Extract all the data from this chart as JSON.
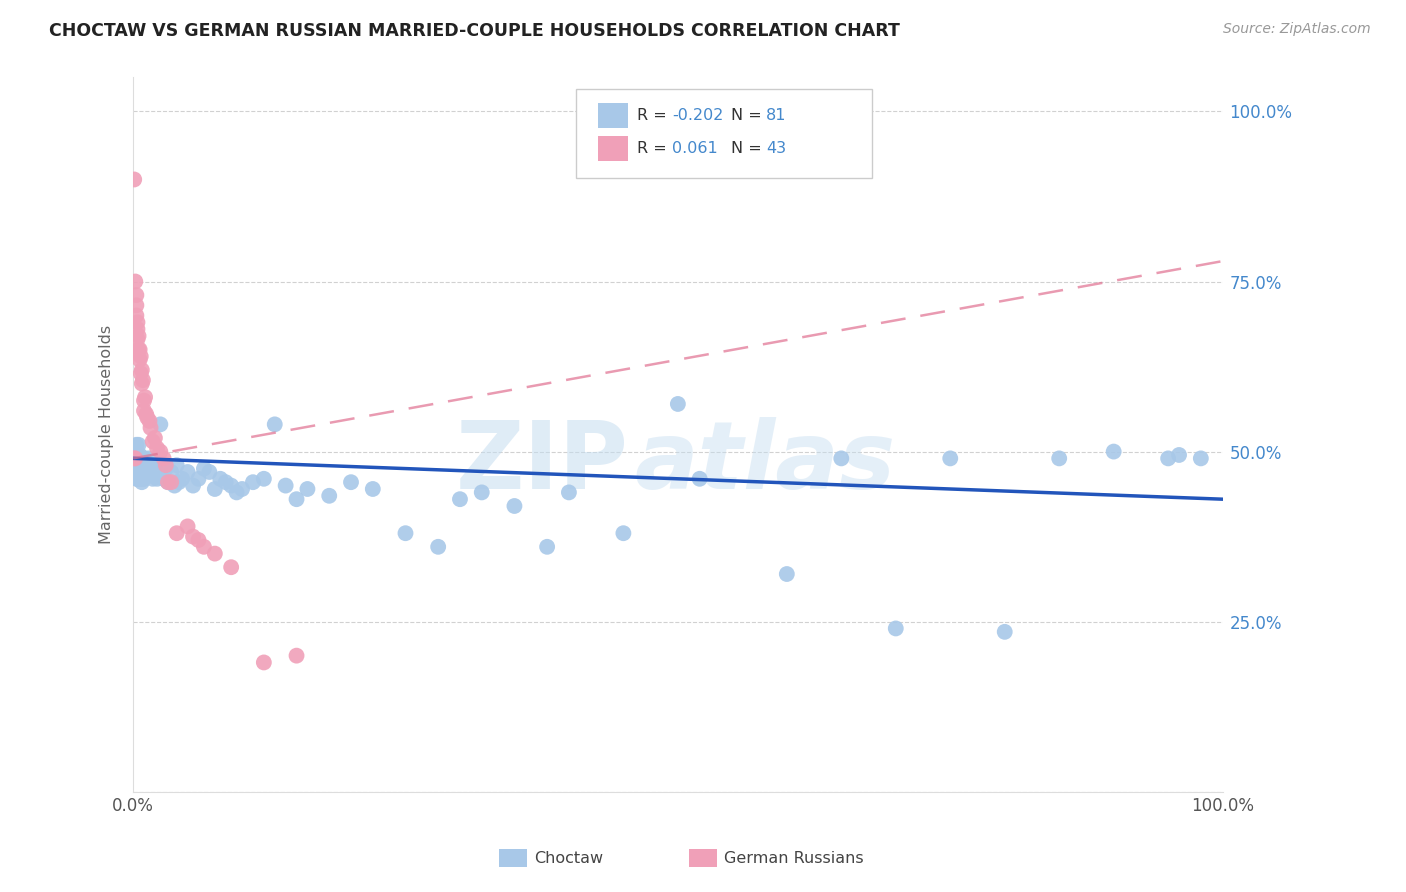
{
  "title": "CHOCTAW VS GERMAN RUSSIAN MARRIED-COUPLE HOUSEHOLDS CORRELATION CHART",
  "source": "Source: ZipAtlas.com",
  "ylabel": "Married-couple Households",
  "watermark_zip": "ZIP",
  "watermark_atlas": "atlas",
  "blue_scatter_color": "#a8c8e8",
  "pink_scatter_color": "#f0a0b8",
  "line_blue_color": "#2255bb",
  "line_pink_color": "#e07090",
  "background": "#ffffff",
  "grid_color": "#cccccc",
  "title_color": "#222222",
  "source_color": "#999999",
  "right_axis_color": "#4488cc",
  "legend_r_color": "#4488cc",
  "legend_black": "#333333",
  "choctaw_x": [
    0.001,
    0.002,
    0.002,
    0.003,
    0.003,
    0.003,
    0.004,
    0.004,
    0.004,
    0.005,
    0.005,
    0.005,
    0.006,
    0.006,
    0.007,
    0.007,
    0.008,
    0.008,
    0.009,
    0.009,
    0.01,
    0.01,
    0.011,
    0.012,
    0.013,
    0.014,
    0.015,
    0.016,
    0.017,
    0.018,
    0.02,
    0.022,
    0.025,
    0.028,
    0.03,
    0.032,
    0.035,
    0.038,
    0.04,
    0.042,
    0.045,
    0.05,
    0.055,
    0.06,
    0.065,
    0.07,
    0.075,
    0.08,
    0.085,
    0.09,
    0.095,
    0.1,
    0.11,
    0.12,
    0.13,
    0.14,
    0.15,
    0.16,
    0.18,
    0.2,
    0.22,
    0.25,
    0.28,
    0.3,
    0.32,
    0.35,
    0.38,
    0.4,
    0.45,
    0.5,
    0.52,
    0.6,
    0.65,
    0.7,
    0.75,
    0.8,
    0.85,
    0.9,
    0.95,
    0.96,
    0.98
  ],
  "choctaw_y": [
    0.49,
    0.48,
    0.475,
    0.51,
    0.495,
    0.46,
    0.49,
    0.475,
    0.46,
    0.51,
    0.48,
    0.46,
    0.495,
    0.46,
    0.49,
    0.465,
    0.48,
    0.455,
    0.475,
    0.46,
    0.49,
    0.46,
    0.475,
    0.48,
    0.465,
    0.49,
    0.475,
    0.465,
    0.48,
    0.46,
    0.475,
    0.46,
    0.54,
    0.46,
    0.475,
    0.455,
    0.47,
    0.45,
    0.48,
    0.455,
    0.46,
    0.47,
    0.45,
    0.46,
    0.475,
    0.47,
    0.445,
    0.46,
    0.455,
    0.45,
    0.44,
    0.445,
    0.455,
    0.46,
    0.54,
    0.45,
    0.43,
    0.445,
    0.435,
    0.455,
    0.445,
    0.38,
    0.36,
    0.43,
    0.44,
    0.42,
    0.36,
    0.44,
    0.38,
    0.57,
    0.46,
    0.32,
    0.49,
    0.24,
    0.49,
    0.235,
    0.49,
    0.5,
    0.49,
    0.495,
    0.49
  ],
  "german_x": [
    0.001,
    0.001,
    0.002,
    0.002,
    0.003,
    0.003,
    0.003,
    0.004,
    0.004,
    0.004,
    0.005,
    0.005,
    0.006,
    0.006,
    0.007,
    0.007,
    0.008,
    0.008,
    0.009,
    0.01,
    0.01,
    0.011,
    0.012,
    0.013,
    0.015,
    0.016,
    0.018,
    0.02,
    0.022,
    0.025,
    0.028,
    0.03,
    0.032,
    0.035,
    0.04,
    0.05,
    0.055,
    0.06,
    0.065,
    0.075,
    0.09,
    0.12,
    0.15
  ],
  "german_y": [
    0.9,
    0.49,
    0.75,
    0.49,
    0.73,
    0.715,
    0.7,
    0.69,
    0.68,
    0.665,
    0.67,
    0.65,
    0.65,
    0.635,
    0.64,
    0.615,
    0.62,
    0.6,
    0.605,
    0.575,
    0.56,
    0.58,
    0.555,
    0.55,
    0.545,
    0.535,
    0.515,
    0.52,
    0.505,
    0.5,
    0.49,
    0.48,
    0.455,
    0.455,
    0.38,
    0.39,
    0.375,
    0.37,
    0.36,
    0.35,
    0.33,
    0.19,
    0.2
  ],
  "choctaw_line_x": [
    0.0,
    1.0
  ],
  "choctaw_line_y": [
    0.49,
    0.43
  ],
  "german_line_x": [
    0.0,
    1.0
  ],
  "german_line_y": [
    0.49,
    0.78
  ],
  "xlim": [
    0.0,
    1.0
  ],
  "ylim": [
    0.0,
    1.05
  ],
  "xtick_positions": [
    0.0,
    0.25,
    0.5,
    0.75,
    1.0
  ],
  "ytick_positions": [
    0.0,
    0.25,
    0.5,
    0.75,
    1.0
  ],
  "right_ytick_labels": [
    "",
    "25.0%",
    "50.0%",
    "75.0%",
    "100.0%"
  ]
}
